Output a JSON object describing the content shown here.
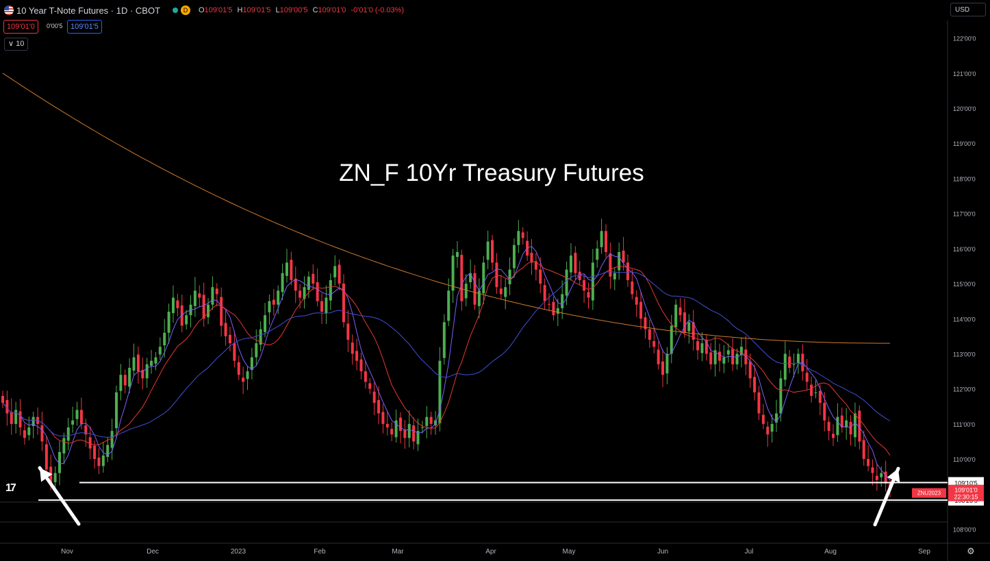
{
  "header": {
    "title": "10 Year T-Note Futures · 1D · CBOT",
    "badge": "D",
    "ohlc": {
      "o_label": "O",
      "o": "109'01'5",
      "h_label": "H",
      "h": "109'01'5",
      "l_label": "L",
      "l": "109'00'5",
      "c_label": "C",
      "c": "109'01'0",
      "change": "-0'01'0 (-0.03%)"
    },
    "sell_price": "109'01'0",
    "spread": "0'00'5",
    "buy_price": "109'01'5",
    "indicator_toggle": "10",
    "currency": "USD"
  },
  "annotation_title": "ZN_F 10Yr Treasury Futures",
  "colors": {
    "up": "#4caf50",
    "down": "#f23645",
    "ma_fast": "#7b61ff",
    "ma_mid": "#e53935",
    "ma_slow": "#3f51d8",
    "ma_long": "#d27a2c",
    "line": "#ffffff",
    "arrow": "#ffffff"
  },
  "chart_data": {
    "type": "candlestick",
    "y_ticks": [
      "122'00'0",
      "121'00'0",
      "120'00'0",
      "119'00'0",
      "118'00'0",
      "117'00'0",
      "116'00'0",
      "115'00'0",
      "114'00'0",
      "113'00'0",
      "112'00'0",
      "111'00'0",
      "110'00'0",
      "108'00'0"
    ],
    "x_ticks": [
      "Nov",
      "Dec",
      "2023",
      "Feb",
      "Mar",
      "Apr",
      "May",
      "Jun",
      "Jul",
      "Aug",
      "Sep"
    ],
    "ylim": [
      107.6,
      122.5
    ],
    "closes": [
      111.6,
      111.3,
      111.0,
      111.4,
      110.9,
      110.6,
      110.9,
      111.2,
      111.0,
      110.5,
      109.7,
      109.3,
      109.6,
      110.2,
      110.6,
      110.9,
      111.1,
      111.4,
      111.0,
      110.7,
      110.3,
      110.0,
      109.8,
      110.1,
      110.4,
      110.8,
      111.9,
      112.4,
      112.1,
      112.6,
      112.9,
      112.5,
      112.3,
      112.7,
      112.8,
      112.9,
      113.2,
      113.6,
      114.2,
      114.6,
      114.3,
      113.8,
      114.1,
      114.4,
      114.8,
      114.6,
      114.0,
      114.4,
      114.9,
      114.7,
      113.8,
      113.5,
      113.3,
      112.8,
      112.4,
      112.2,
      112.5,
      112.9,
      113.3,
      113.7,
      114.1,
      114.5,
      114.4,
      114.8,
      115.3,
      115.6,
      115.1,
      114.8,
      114.6,
      114.9,
      115.2,
      115.0,
      114.5,
      114.2,
      114.6,
      115.1,
      115.5,
      115.0,
      113.9,
      113.4,
      113.0,
      112.8,
      112.5,
      112.2,
      112.0,
      111.6,
      111.3,
      111.0,
      110.9,
      110.7,
      111.1,
      110.8,
      110.6,
      111.0,
      110.5,
      110.8,
      110.9,
      111.2,
      111.0,
      111.1,
      112.8,
      113.9,
      114.8,
      115.8,
      115.9,
      114.5,
      115.0,
      115.3,
      114.4,
      114.8,
      115.6,
      116.2,
      115.6,
      114.9,
      114.7,
      114.9,
      115.4,
      116.1,
      116.5,
      116.3,
      115.8,
      115.6,
      115.4,
      115.0,
      114.5,
      114.4,
      114.1,
      114.3,
      114.7,
      115.4,
      115.8,
      115.3,
      115.1,
      114.8,
      114.6,
      115.6,
      116.0,
      116.5,
      115.9,
      115.2,
      115.3,
      115.9,
      115.6,
      115.1,
      114.7,
      114.4,
      114.0,
      113.7,
      113.4,
      113.2,
      112.7,
      112.4,
      113.0,
      113.8,
      114.4,
      114.1,
      113.6,
      113.9,
      113.4,
      113.1,
      113.3,
      113.0,
      112.7,
      113.1,
      112.8,
      112.9,
      113.1,
      112.7,
      113.0,
      113.2,
      112.7,
      112.3,
      111.9,
      111.3,
      111.0,
      110.7,
      111.0,
      111.3,
      112.3,
      113.0,
      112.6,
      112.7,
      113.0,
      112.5,
      112.2,
      111.8,
      111.9,
      111.6,
      111.1,
      110.8,
      110.6,
      111.2,
      110.9,
      111.1,
      110.7,
      111.3,
      110.5,
      110.0,
      109.8,
      109.6,
      109.4,
      109.6,
      109.3,
      109.1
    ],
    "ma_long": [
      121.0,
      113.3
    ],
    "support_upper": "109'10'5",
    "support_lower": "108'26'5",
    "last_symbol": "ZNU2023",
    "last_price": "109'01'0",
    "countdown": "22:30:15"
  }
}
